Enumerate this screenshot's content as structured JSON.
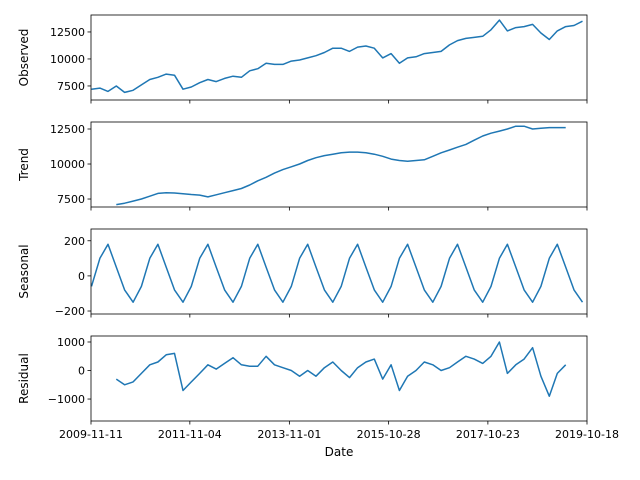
{
  "chart_data": [
    {
      "type": "line",
      "ylabel": "Observed",
      "color": "#1f77b4",
      "x": [
        "2009-11-15",
        "2010-01-15",
        "2010-03-15",
        "2010-05-15",
        "2010-07-15",
        "2010-09-15",
        "2010-11-15",
        "2011-01-15",
        "2011-03-15",
        "2011-05-15",
        "2011-07-15",
        "2011-09-15",
        "2011-11-15",
        "2012-01-15",
        "2012-03-15",
        "2012-05-15",
        "2012-07-15",
        "2012-09-15",
        "2012-11-15",
        "2013-01-15",
        "2013-03-15",
        "2013-05-15",
        "2013-07-15",
        "2013-09-15",
        "2013-11-15",
        "2014-01-15",
        "2014-03-15",
        "2014-05-15",
        "2014-07-15",
        "2014-09-15",
        "2014-11-15",
        "2015-01-15",
        "2015-03-15",
        "2015-05-15",
        "2015-07-15",
        "2015-09-15",
        "2015-11-15",
        "2016-01-15",
        "2016-03-15",
        "2016-05-15",
        "2016-07-15",
        "2016-09-15",
        "2016-11-15",
        "2017-01-15",
        "2017-03-15",
        "2017-05-15",
        "2017-07-15",
        "2017-09-15",
        "2017-11-15",
        "2018-01-15",
        "2018-03-15",
        "2018-05-15",
        "2018-07-15",
        "2018-09-15",
        "2018-11-15",
        "2019-01-15",
        "2019-03-15",
        "2019-05-15",
        "2019-07-15",
        "2019-09-15"
      ],
      "values": [
        7200,
        7300,
        7000,
        7500,
        6900,
        7100,
        7600,
        8100,
        8300,
        8600,
        8500,
        7200,
        7400,
        7800,
        8100,
        7900,
        8200,
        8400,
        8300,
        8900,
        9100,
        9600,
        9500,
        9500,
        9800,
        9900,
        10100,
        10300,
        10600,
        11000,
        11000,
        10700,
        11100,
        11200,
        11000,
        10100,
        10500,
        9600,
        10100,
        10200,
        10500,
        10600,
        10700,
        11300,
        11700,
        11900,
        12000,
        12100,
        12700,
        13600,
        12600,
        12900,
        13000,
        13200,
        12400,
        11800,
        12600,
        13000,
        13100,
        13500
      ],
      "ylim": [
        6200,
        14070
      ],
      "yticks": [
        7500,
        10000,
        12500
      ]
    },
    {
      "type": "line",
      "ylabel": "Trend",
      "color": "#1f77b4",
      "x": [
        "2009-11-15",
        "2010-01-15",
        "2010-03-15",
        "2010-05-15",
        "2010-07-15",
        "2010-09-15",
        "2010-11-15",
        "2011-01-15",
        "2011-03-15",
        "2011-05-15",
        "2011-07-15",
        "2011-09-15",
        "2011-11-15",
        "2012-01-15",
        "2012-03-15",
        "2012-05-15",
        "2012-07-15",
        "2012-09-15",
        "2012-11-15",
        "2013-01-15",
        "2013-03-15",
        "2013-05-15",
        "2013-07-15",
        "2013-09-15",
        "2013-11-15",
        "2014-01-15",
        "2014-03-15",
        "2014-05-15",
        "2014-07-15",
        "2014-09-15",
        "2014-11-15",
        "2015-01-15",
        "2015-03-15",
        "2015-05-15",
        "2015-07-15",
        "2015-09-15",
        "2015-11-15",
        "2016-01-15",
        "2016-03-15",
        "2016-05-15",
        "2016-07-15",
        "2016-09-15",
        "2016-11-15",
        "2017-01-15",
        "2017-03-15",
        "2017-05-15",
        "2017-07-15",
        "2017-09-15",
        "2017-11-15",
        "2018-01-15",
        "2018-03-15",
        "2018-05-15",
        "2018-07-15",
        "2018-09-15",
        "2018-11-15",
        "2019-01-15",
        "2019-03-15",
        "2019-05-15",
        "2019-07-15",
        "2019-09-15"
      ],
      "values": [
        null,
        null,
        null,
        7100,
        7200,
        7350,
        7500,
        7700,
        7900,
        7950,
        7930,
        7880,
        7820,
        7780,
        7650,
        7800,
        7950,
        8100,
        8250,
        8500,
        8800,
        9050,
        9350,
        9600,
        9800,
        10000,
        10250,
        10450,
        10600,
        10700,
        10800,
        10850,
        10850,
        10800,
        10700,
        10550,
        10350,
        10250,
        10200,
        10250,
        10300,
        10550,
        10800,
        11000,
        11200,
        11400,
        11700,
        12000,
        12200,
        12350,
        12500,
        12700,
        12700,
        12500,
        12550,
        12600,
        12600,
        12600,
        null,
        null
      ],
      "ylim": [
        6930,
        13000
      ],
      "yticks": [
        7500,
        10000,
        12500
      ]
    },
    {
      "type": "line",
      "ylabel": "Seasonal",
      "color": "#1f77b4",
      "x": [
        "2009-11-15",
        "2010-01-15",
        "2010-03-15",
        "2010-05-15",
        "2010-07-15",
        "2010-09-15",
        "2010-11-15",
        "2011-01-15",
        "2011-03-15",
        "2011-05-15",
        "2011-07-15",
        "2011-09-15",
        "2011-11-15",
        "2012-01-15",
        "2012-03-15",
        "2012-05-15",
        "2012-07-15",
        "2012-09-15",
        "2012-11-15",
        "2013-01-15",
        "2013-03-15",
        "2013-05-15",
        "2013-07-15",
        "2013-09-15",
        "2013-11-15",
        "2014-01-15",
        "2014-03-15",
        "2014-05-15",
        "2014-07-15",
        "2014-09-15",
        "2014-11-15",
        "2015-01-15",
        "2015-03-15",
        "2015-05-15",
        "2015-07-15",
        "2015-09-15",
        "2015-11-15",
        "2016-01-15",
        "2016-03-15",
        "2016-05-15",
        "2016-07-15",
        "2016-09-15",
        "2016-11-15",
        "2017-01-15",
        "2017-03-15",
        "2017-05-15",
        "2017-07-15",
        "2017-09-15",
        "2017-11-15",
        "2018-01-15",
        "2018-03-15",
        "2018-05-15",
        "2018-07-15",
        "2018-09-15",
        "2018-11-15",
        "2019-01-15",
        "2019-03-15",
        "2019-05-15",
        "2019-07-15",
        "2019-09-15"
      ],
      "values": [
        -60,
        100,
        180,
        50,
        -80,
        -150,
        -60,
        100,
        180,
        50,
        -80,
        -150,
        -60,
        100,
        180,
        50,
        -80,
        -150,
        -60,
        100,
        180,
        50,
        -80,
        -150,
        -60,
        100,
        180,
        50,
        -80,
        -150,
        -60,
        100,
        180,
        50,
        -80,
        -150,
        -60,
        100,
        180,
        50,
        -80,
        -150,
        -60,
        100,
        180,
        50,
        -80,
        -150,
        -60,
        100,
        180,
        50,
        -80,
        -150,
        -60,
        100,
        180,
        50,
        -80,
        -150
      ],
      "ylim": [
        -217,
        267
      ],
      "yticks": [
        {
          "value": -200,
          "label": "−200"
        },
        0,
        200
      ]
    },
    {
      "type": "line",
      "ylabel": "Residual",
      "xlabel": "Date",
      "color": "#1f77b4",
      "x": [
        "2009-11-15",
        "2010-01-15",
        "2010-03-15",
        "2010-05-15",
        "2010-07-15",
        "2010-09-15",
        "2010-11-15",
        "2011-01-15",
        "2011-03-15",
        "2011-05-15",
        "2011-07-15",
        "2011-09-15",
        "2011-11-15",
        "2012-01-15",
        "2012-03-15",
        "2012-05-15",
        "2012-07-15",
        "2012-09-15",
        "2012-11-15",
        "2013-01-15",
        "2013-03-15",
        "2013-05-15",
        "2013-07-15",
        "2013-09-15",
        "2013-11-15",
        "2014-01-15",
        "2014-03-15",
        "2014-05-15",
        "2014-07-15",
        "2014-09-15",
        "2014-11-15",
        "2015-01-15",
        "2015-03-15",
        "2015-05-15",
        "2015-07-15",
        "2015-09-15",
        "2015-11-15",
        "2016-01-15",
        "2016-03-15",
        "2016-05-15",
        "2016-07-15",
        "2016-09-15",
        "2016-11-15",
        "2017-01-15",
        "2017-03-15",
        "2017-05-15",
        "2017-07-15",
        "2017-09-15",
        "2017-11-15",
        "2018-01-15",
        "2018-03-15",
        "2018-05-15",
        "2018-07-15",
        "2018-09-15",
        "2018-11-15",
        "2019-01-15",
        "2019-03-15",
        "2019-05-15",
        "2019-07-15",
        "2019-09-15"
      ],
      "values": [
        null,
        null,
        null,
        -300,
        -500,
        -400,
        -100,
        200,
        300,
        550,
        600,
        -700,
        -400,
        -100,
        200,
        50,
        250,
        450,
        200,
        150,
        150,
        500,
        200,
        100,
        0,
        -200,
        0,
        -200,
        100,
        300,
        0,
        -250,
        100,
        300,
        400,
        -300,
        200,
        -700,
        -200,
        0,
        300,
        200,
        0,
        100,
        300,
        500,
        400,
        250,
        500,
        1000,
        -100,
        200,
        400,
        800,
        -200,
        -900,
        -100,
        200,
        null,
        null
      ],
      "ylim": [
        -1770,
        1210
      ],
      "yticks": [
        {
          "value": -1000,
          "label": "−1000"
        },
        0,
        1000
      ],
      "xlim": [
        "2009-11-11",
        "2019-10-18"
      ],
      "xticks": [
        "2009-11-11",
        "2011-11-04",
        "2013-11-01",
        "2015-10-28",
        "2017-10-23",
        "2019-10-18"
      ]
    }
  ]
}
